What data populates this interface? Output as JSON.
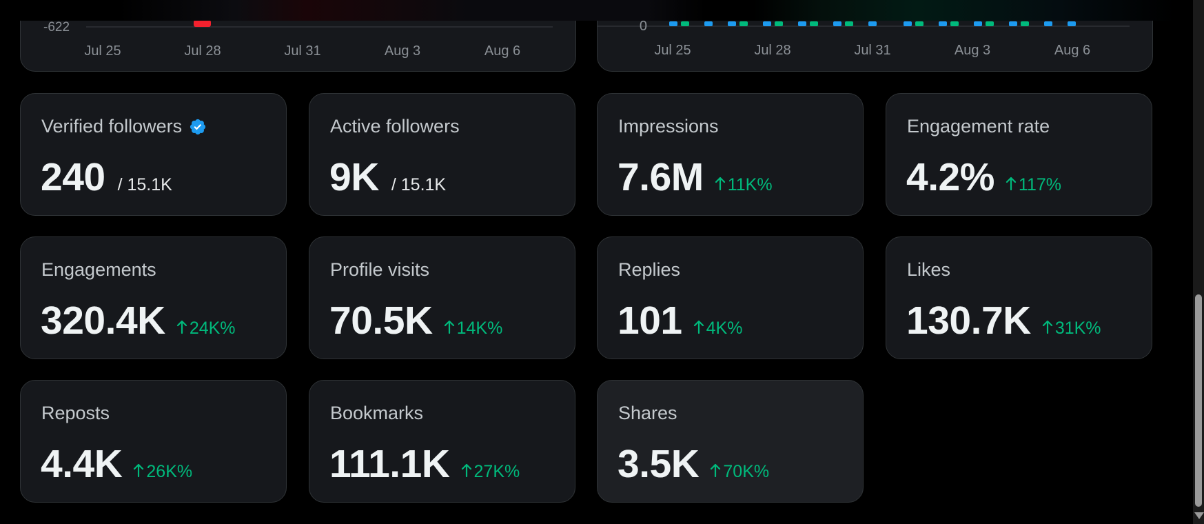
{
  "charts": [
    {
      "id": "left",
      "y_tick_label": "-622",
      "x_tick_labels": [
        "Jul 25",
        "Jul 28",
        "Jul 31",
        "Aug 3",
        "Aug 6"
      ],
      "bar_color": "#f4212e"
    },
    {
      "id": "right",
      "y_tick_label": "0",
      "x_tick_labels": [
        "Jul 25",
        "Jul 28",
        "Jul 31",
        "Aug 3",
        "Aug 6"
      ],
      "series_colors": [
        "#1d9bf0",
        "#00ba7c"
      ]
    }
  ],
  "metrics": [
    {
      "title": "Verified followers",
      "verified_icon": true,
      "value": "240",
      "sub": "/ 15.1K",
      "delta": ""
    },
    {
      "title": "Active followers",
      "value": "9K",
      "sub": "/ 15.1K",
      "delta": ""
    },
    {
      "title": "Impressions",
      "value": "7.6M",
      "sub": "",
      "delta": "11K%"
    },
    {
      "title": "Engagement rate",
      "value": "4.2%",
      "sub": "",
      "delta": "117%"
    },
    {
      "title": "Engagements",
      "value": "320.4K",
      "sub": "",
      "delta": "24K%"
    },
    {
      "title": "Profile visits",
      "value": "70.5K",
      "sub": "",
      "delta": "14K%"
    },
    {
      "title": "Replies",
      "value": "101",
      "sub": "",
      "delta": "4K%"
    },
    {
      "title": "Likes",
      "value": "130.7K",
      "sub": "",
      "delta": "31K%"
    },
    {
      "title": "Reposts",
      "value": "4.4K",
      "sub": "",
      "delta": "26K%"
    },
    {
      "title": "Bookmarks",
      "value": "111.1K",
      "sub": "",
      "delta": "27K%"
    },
    {
      "title": "Shares",
      "value": "3.5K",
      "sub": "",
      "delta": "70K%",
      "hovered": true
    }
  ],
  "colors": {
    "positive": "#00ba7c",
    "verified": "#1d9bf0"
  }
}
